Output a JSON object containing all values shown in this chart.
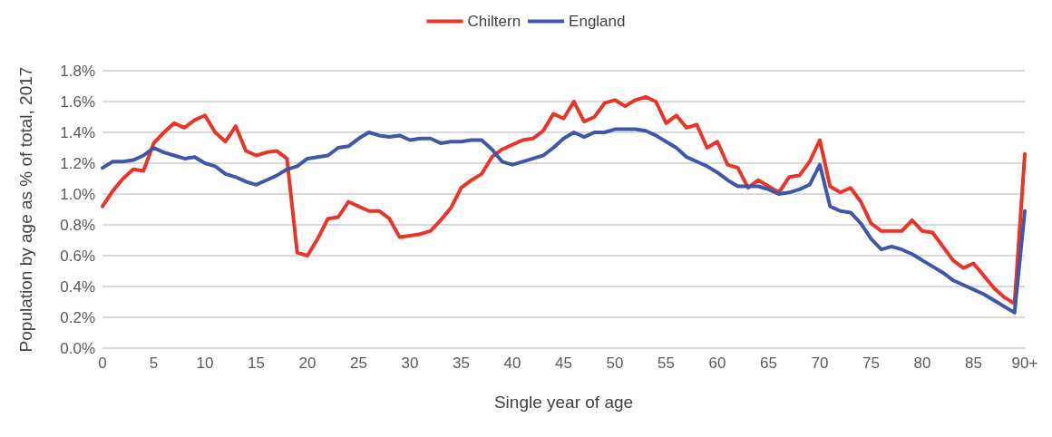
{
  "chart_data": {
    "type": "line",
    "xlabel": "Single year of age",
    "ylabel": "Population by age as % of total, 2017",
    "categories": [
      "0",
      null,
      null,
      null,
      null,
      "5",
      null,
      null,
      null,
      null,
      "10",
      null,
      null,
      null,
      null,
      "15",
      null,
      null,
      null,
      null,
      "20",
      null,
      null,
      null,
      null,
      "25",
      null,
      null,
      null,
      null,
      "30",
      null,
      null,
      null,
      null,
      "35",
      null,
      null,
      null,
      null,
      "40",
      null,
      null,
      null,
      null,
      "45",
      null,
      null,
      null,
      null,
      "50",
      null,
      null,
      null,
      null,
      "55",
      null,
      null,
      null,
      null,
      "60",
      null,
      null,
      null,
      null,
      "65",
      null,
      null,
      null,
      null,
      "70",
      null,
      null,
      null,
      null,
      "75",
      null,
      null,
      null,
      null,
      "80",
      null,
      null,
      null,
      null,
      "85",
      null,
      null,
      null,
      null,
      "90+"
    ],
    "series": [
      {
        "name": "Chiltern",
        "color": "#e8352a",
        "values": [
          0.92,
          1.02,
          1.1,
          1.16,
          1.15,
          1.33,
          1.4,
          1.46,
          1.43,
          1.48,
          1.51,
          1.4,
          1.34,
          1.44,
          1.28,
          1.25,
          1.27,
          1.28,
          1.23,
          0.62,
          0.6,
          0.71,
          0.84,
          0.85,
          0.95,
          0.92,
          0.89,
          0.89,
          0.84,
          0.72,
          0.73,
          0.74,
          0.76,
          0.83,
          0.91,
          1.04,
          1.09,
          1.13,
          1.24,
          1.29,
          1.32,
          1.35,
          1.36,
          1.41,
          1.52,
          1.49,
          1.6,
          1.47,
          1.5,
          1.59,
          1.61,
          1.57,
          1.61,
          1.63,
          1.6,
          1.46,
          1.51,
          1.43,
          1.45,
          1.3,
          1.34,
          1.19,
          1.17,
          1.04,
          1.09,
          1.05,
          1.01,
          1.11,
          1.12,
          1.21,
          1.35,
          1.05,
          1.01,
          1.04,
          0.95,
          0.81,
          0.76,
          0.76,
          0.76,
          0.83,
          0.76,
          0.75,
          0.66,
          0.57,
          0.52,
          0.55,
          0.47,
          0.39,
          0.33,
          0.29,
          1.26
        ]
      },
      {
        "name": "England",
        "color": "#3f57a6",
        "values": [
          1.17,
          1.21,
          1.21,
          1.22,
          1.25,
          1.3,
          1.27,
          1.25,
          1.23,
          1.24,
          1.2,
          1.18,
          1.13,
          1.11,
          1.08,
          1.06,
          1.09,
          1.12,
          1.16,
          1.18,
          1.23,
          1.24,
          1.25,
          1.3,
          1.31,
          1.36,
          1.4,
          1.38,
          1.37,
          1.38,
          1.35,
          1.36,
          1.36,
          1.33,
          1.34,
          1.34,
          1.35,
          1.35,
          1.29,
          1.21,
          1.19,
          1.21,
          1.23,
          1.25,
          1.3,
          1.36,
          1.4,
          1.37,
          1.4,
          1.4,
          1.42,
          1.42,
          1.42,
          1.41,
          1.38,
          1.34,
          1.3,
          1.24,
          1.21,
          1.18,
          1.14,
          1.09,
          1.05,
          1.05,
          1.05,
          1.03,
          1.0,
          1.01,
          1.03,
          1.06,
          1.19,
          0.92,
          0.89,
          0.88,
          0.81,
          0.71,
          0.64,
          0.66,
          0.64,
          0.61,
          0.57,
          0.53,
          0.49,
          0.44,
          0.41,
          0.38,
          0.35,
          0.31,
          0.27,
          0.23,
          0.89
        ]
      }
    ],
    "ylim": [
      0,
      1.8
    ],
    "yticks": [
      {
        "value": 0,
        "label": "0.0%"
      },
      {
        "value": 0.2,
        "label": "0.2%"
      },
      {
        "value": 0.4,
        "label": "0.4%"
      },
      {
        "value": 0.6,
        "label": "0.6%"
      },
      {
        "value": 0.8,
        "label": "0.8%"
      },
      {
        "value": 1.0,
        "label": "1.0%"
      },
      {
        "value": 1.2,
        "label": "1.2%"
      },
      {
        "value": 1.4,
        "label": "1.4%"
      },
      {
        "value": 1.6,
        "label": "1.6%"
      },
      {
        "value": 1.8,
        "label": "1.8%"
      }
    ],
    "grid": "y",
    "legend": "top",
    "marker": "none",
    "line_style": "solid"
  }
}
